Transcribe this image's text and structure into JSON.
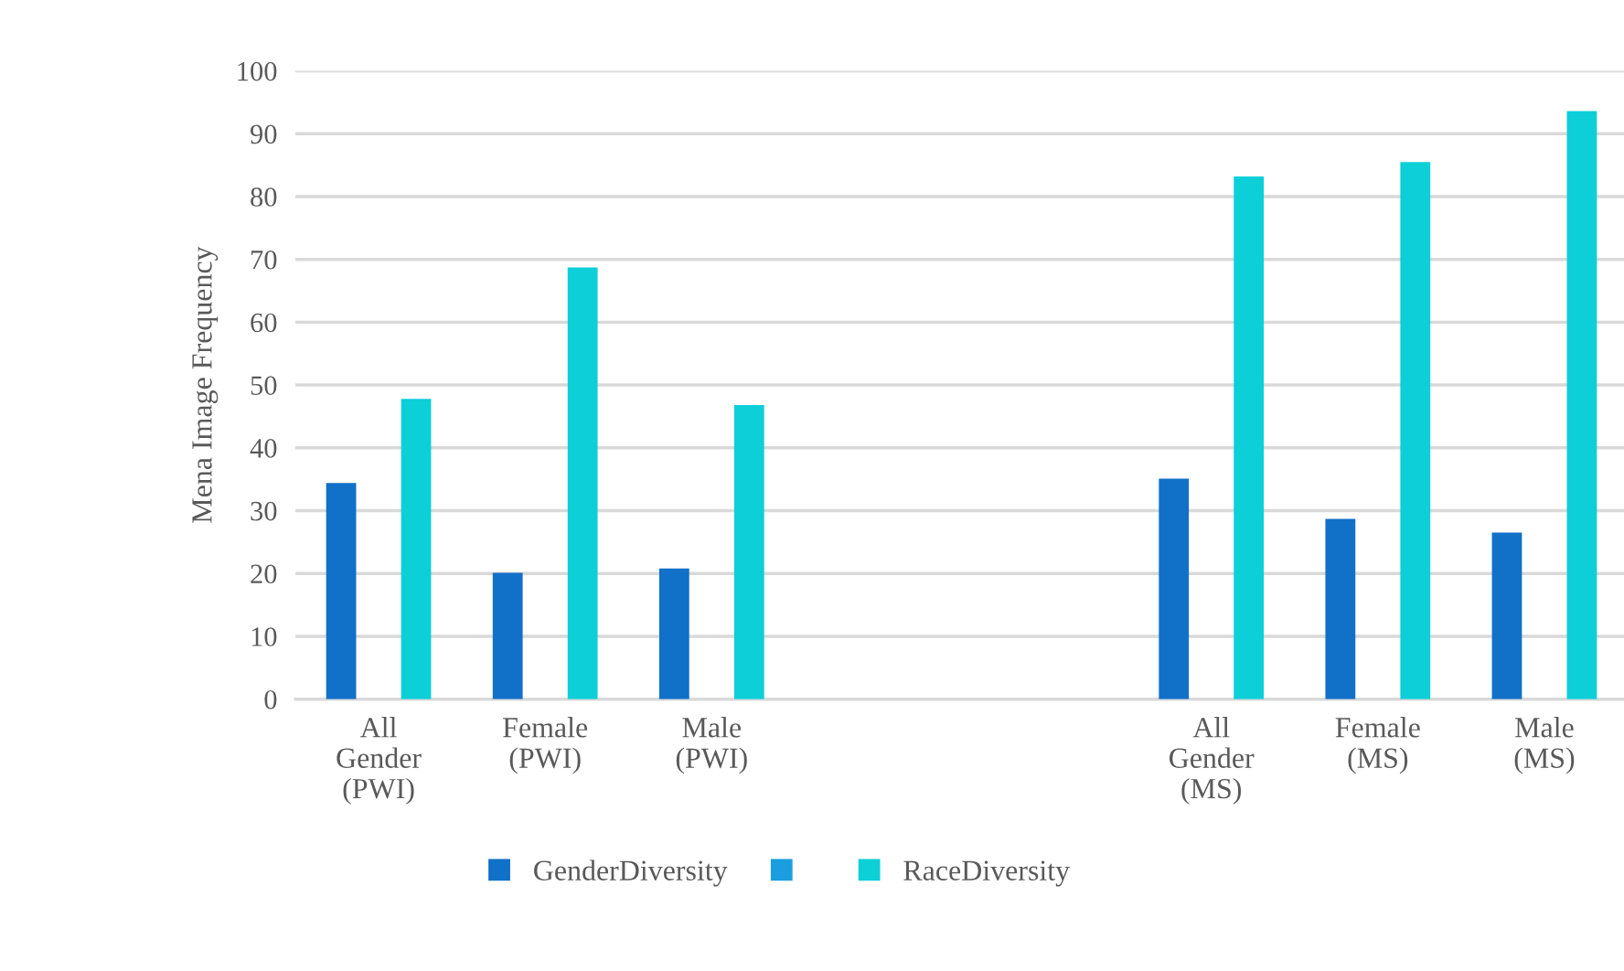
{
  "chart_data": {
    "type": "bar",
    "ylabel": "Mena Image Frequency",
    "categories": [
      "All\nGender\n(PWI)",
      "Female\n(PWI)",
      "Male\n(PWI)",
      null,
      null,
      "All\nGender\n(MS)",
      "Female\n(MS)",
      "Male\n(MS)"
    ],
    "series": [
      {
        "name": "GenderDiversity",
        "color": "#1170c8",
        "values": [
          34.4,
          20.1,
          20.8,
          null,
          null,
          35.1,
          28.7,
          26.5
        ]
      },
      {
        "color": "#1a9ee0",
        "values": [
          null,
          null,
          null,
          null,
          null,
          null,
          null,
          null
        ]
      },
      {
        "name": "RaceDiversity",
        "color": "#0ccfd8",
        "values": [
          47.8,
          68.7,
          46.8,
          null,
          null,
          83.2,
          85.5,
          93.6
        ]
      }
    ],
    "ylim": [
      0,
      100
    ],
    "yticks": [
      0,
      10,
      20,
      30,
      40,
      50,
      60,
      70,
      80,
      90,
      100
    ],
    "grid": "y",
    "legend": "bottom"
  }
}
